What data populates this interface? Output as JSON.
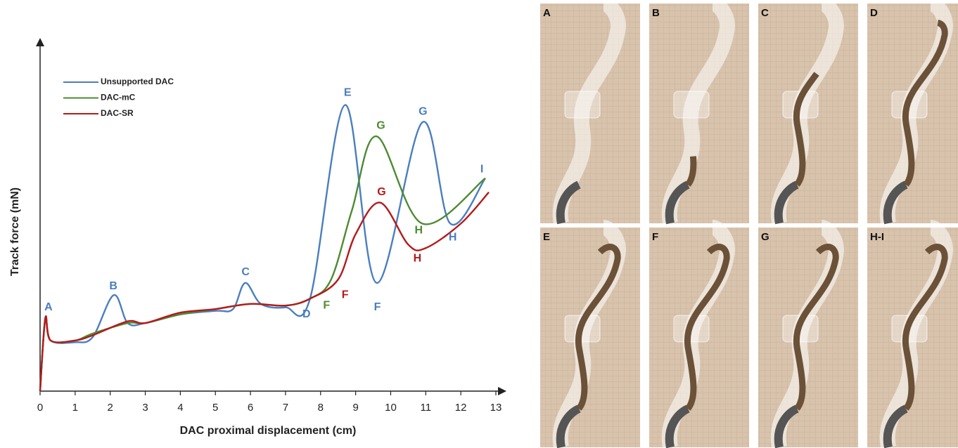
{
  "chart_data": {
    "type": "line",
    "x_label": "DAC proximal displacement (cm)",
    "y_label": "Track force (mN)",
    "xlim": [
      0,
      13
    ],
    "ylim": [
      0,
      100
    ],
    "xticks": [
      0,
      1,
      2,
      3,
      4,
      5,
      6,
      7,
      8,
      9,
      10,
      11,
      12,
      13
    ],
    "legend": "top-left",
    "series": [
      {
        "name": "Unsupported DAC",
        "color": "#4a7ebf",
        "x": [
          0,
          0.15,
          0.3,
          1,
          1.5,
          2.1,
          2.5,
          3,
          4,
          5,
          5.5,
          5.85,
          6.3,
          7,
          7.7,
          8.7,
          9.6,
          10.9,
          11.7,
          12.7
        ],
        "values": [
          0,
          21,
          14.5,
          14,
          15.5,
          27.5,
          19.5,
          19.5,
          22,
          23,
          23.5,
          31,
          25,
          24,
          26.5,
          82,
          31,
          77,
          48,
          61
        ]
      },
      {
        "name": "DAC-mC",
        "color": "#4e8a32",
        "x": [
          0,
          0.15,
          0.3,
          1,
          1.5,
          2.5,
          3,
          4,
          5,
          6,
          7,
          7.7,
          8.3,
          8.9,
          9.6,
          10.9,
          12.7
        ],
        "values": [
          0,
          21,
          14.5,
          14.5,
          16.5,
          19.5,
          19.5,
          22,
          23.5,
          25,
          24.5,
          26.5,
          32,
          52,
          73,
          48,
          61
        ]
      },
      {
        "name": "DAC-SR",
        "color": "#b41a1a",
        "x": [
          0,
          0.15,
          0.3,
          1,
          1.5,
          2.5,
          3,
          4,
          5,
          6,
          7,
          7.7,
          8.5,
          9.0,
          9.7,
          10.5,
          11,
          12,
          12.8
        ],
        "values": [
          0,
          21,
          14.5,
          14.5,
          16,
          20,
          19.5,
          22.5,
          23.5,
          25,
          24.5,
          26.5,
          32,
          45,
          54,
          42,
          41,
          48,
          57
        ]
      }
    ],
    "annotations": [
      {
        "text": "A",
        "x": 0.24,
        "y": 24,
        "color": "#4a7ebf"
      },
      {
        "text": "B",
        "x": 2.09,
        "y": 30,
        "color": "#4a7ebf"
      },
      {
        "text": "C",
        "x": 5.86,
        "y": 34,
        "color": "#4a7ebf"
      },
      {
        "text": "D",
        "x": 7.6,
        "y": 22,
        "color": "#4a7ebf"
      },
      {
        "text": "F",
        "x": 8.17,
        "y": 24.5,
        "color": "#4e8a32"
      },
      {
        "text": "F",
        "x": 8.7,
        "y": 27.5,
        "color": "#b41a1a"
      },
      {
        "text": "E",
        "x": 8.77,
        "y": 85.5,
        "color": "#4a7ebf"
      },
      {
        "text": "G",
        "x": 9.72,
        "y": 76,
        "color": "#4e8a32"
      },
      {
        "text": "F",
        "x": 9.62,
        "y": 24,
        "color": "#4a7ebf"
      },
      {
        "text": "G",
        "x": 9.74,
        "y": 57,
        "color": "#b41a1a"
      },
      {
        "text": "H",
        "x": 10.8,
        "y": 46,
        "color": "#4e8a32"
      },
      {
        "text": "H",
        "x": 10.76,
        "y": 38,
        "color": "#b41a1a"
      },
      {
        "text": "G",
        "x": 10.92,
        "y": 80,
        "color": "#4a7ebf"
      },
      {
        "text": "H",
        "x": 11.77,
        "y": 44,
        "color": "#4a7ebf"
      },
      {
        "text": "I",
        "x": 12.6,
        "y": 63.5,
        "color": "#4a7ebf"
      }
    ]
  },
  "panels": {
    "labels": [
      "A",
      "B",
      "C",
      "D",
      "E",
      "F",
      "G",
      "H-I"
    ]
  }
}
